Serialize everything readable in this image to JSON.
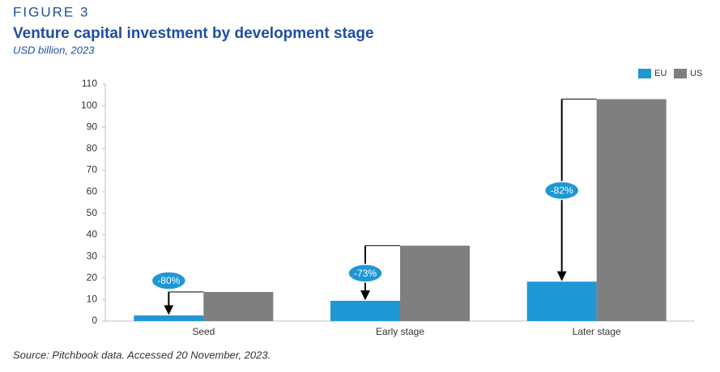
{
  "chart_data": {
    "type": "bar",
    "figure_label": "FIGURE 3",
    "title": "Venture capital investment by development stage",
    "subtitle": "USD billion, 2023",
    "source": "Source: Pitchbook data. Accessed 20 November, 2023.",
    "categories": [
      "Seed",
      "Early stage",
      "Later stage"
    ],
    "series": [
      {
        "name": "EU",
        "color": "#1f97d4",
        "values": [
          2.6,
          9.4,
          18.3
        ]
      },
      {
        "name": "US",
        "color": "#7f7f7f",
        "values": [
          13.5,
          35,
          103
        ]
      }
    ],
    "annotations": [
      "-80%",
      "-73%",
      "-82%"
    ],
    "ylim": [
      0,
      110
    ],
    "yticks": [
      0,
      10,
      20,
      30,
      40,
      50,
      60,
      70,
      80,
      90,
      100,
      110
    ],
    "legend": "top-right"
  }
}
